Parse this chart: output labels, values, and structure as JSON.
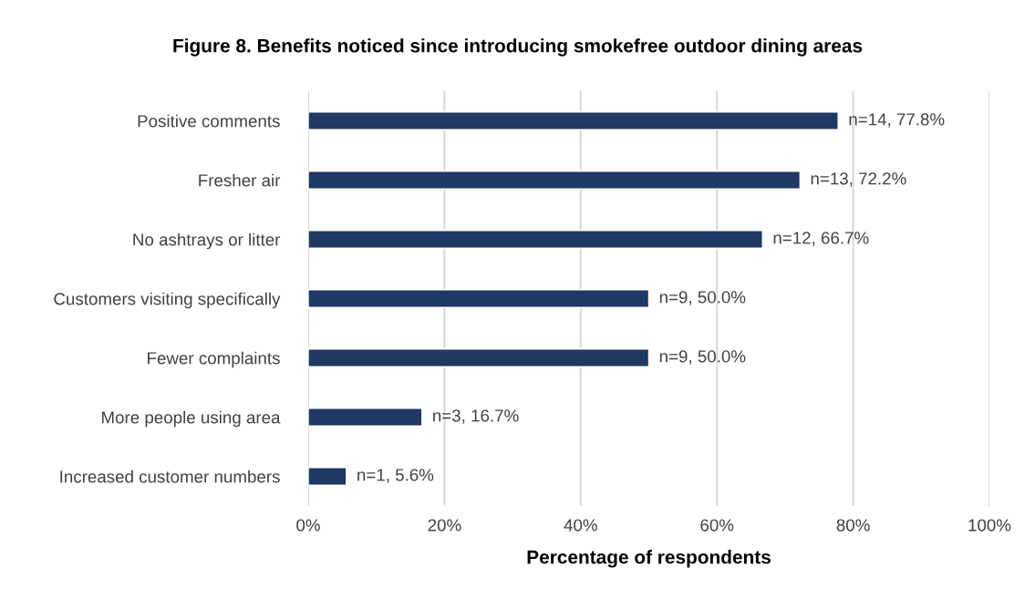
{
  "chart_data": {
    "type": "bar",
    "orientation": "horizontal",
    "title": "Figure 8. Benefits noticed since introducing smokefree outdoor dining areas",
    "xlabel": "Percentage of respondents",
    "categories": [
      "Positive comments",
      "Fresher air",
      "No ashtrays or litter",
      "Customers visiting specifically",
      "Fewer complaints",
      "More people using area",
      "Increased customer numbers"
    ],
    "values": [
      77.8,
      72.2,
      66.7,
      50.0,
      50.0,
      16.7,
      5.6
    ],
    "value_labels": [
      "n=14, 77.8%",
      "n=13, 72.2%",
      "n=12, 66.7%",
      "n=9, 50.0%",
      "n=9, 50.0%",
      "n=3, 16.7%",
      "n=1, 5.6%"
    ],
    "color": "#203864",
    "xlim": [
      0,
      100
    ],
    "xticks": [
      {
        "value": 0,
        "label": "0%"
      },
      {
        "value": 20,
        "label": "20%"
      },
      {
        "value": 40,
        "label": "40%"
      },
      {
        "value": 60,
        "label": "60%"
      },
      {
        "value": 80,
        "label": "80%"
      },
      {
        "value": 100,
        "label": "100%"
      }
    ],
    "grid": "x",
    "legend": false
  }
}
